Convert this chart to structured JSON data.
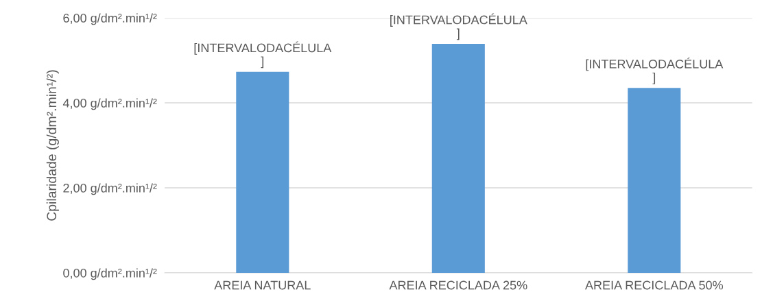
{
  "chart_data": {
    "type": "bar",
    "ylabel": "Cpilaridade (g/dm².min¹/²)",
    "categories": [
      "AREIA NATURAL",
      "AREIA RECICLADA 25%",
      "AREIA RECICLADA 50%"
    ],
    "values": [
      4.73,
      5.39,
      4.35
    ],
    "color": "#5b9bd5",
    "value_labels": [
      "[INTERVALODACÉLULA\n]",
      "[INTERVALODACÉLULA\n]",
      "[INTERVALODACÉLULA\n]"
    ],
    "ylim": [
      0,
      6
    ],
    "yticks": [
      {
        "value": 0,
        "label": "0,00 g/dm².min¹/²"
      },
      {
        "value": 2,
        "label": "2,00 g/dm².min¹/²"
      },
      {
        "value": 4,
        "label": "4,00 g/dm².min¹/²"
      },
      {
        "value": 6,
        "label": "6,00 g/dm².min¹/²"
      }
    ],
    "grid": "y"
  }
}
